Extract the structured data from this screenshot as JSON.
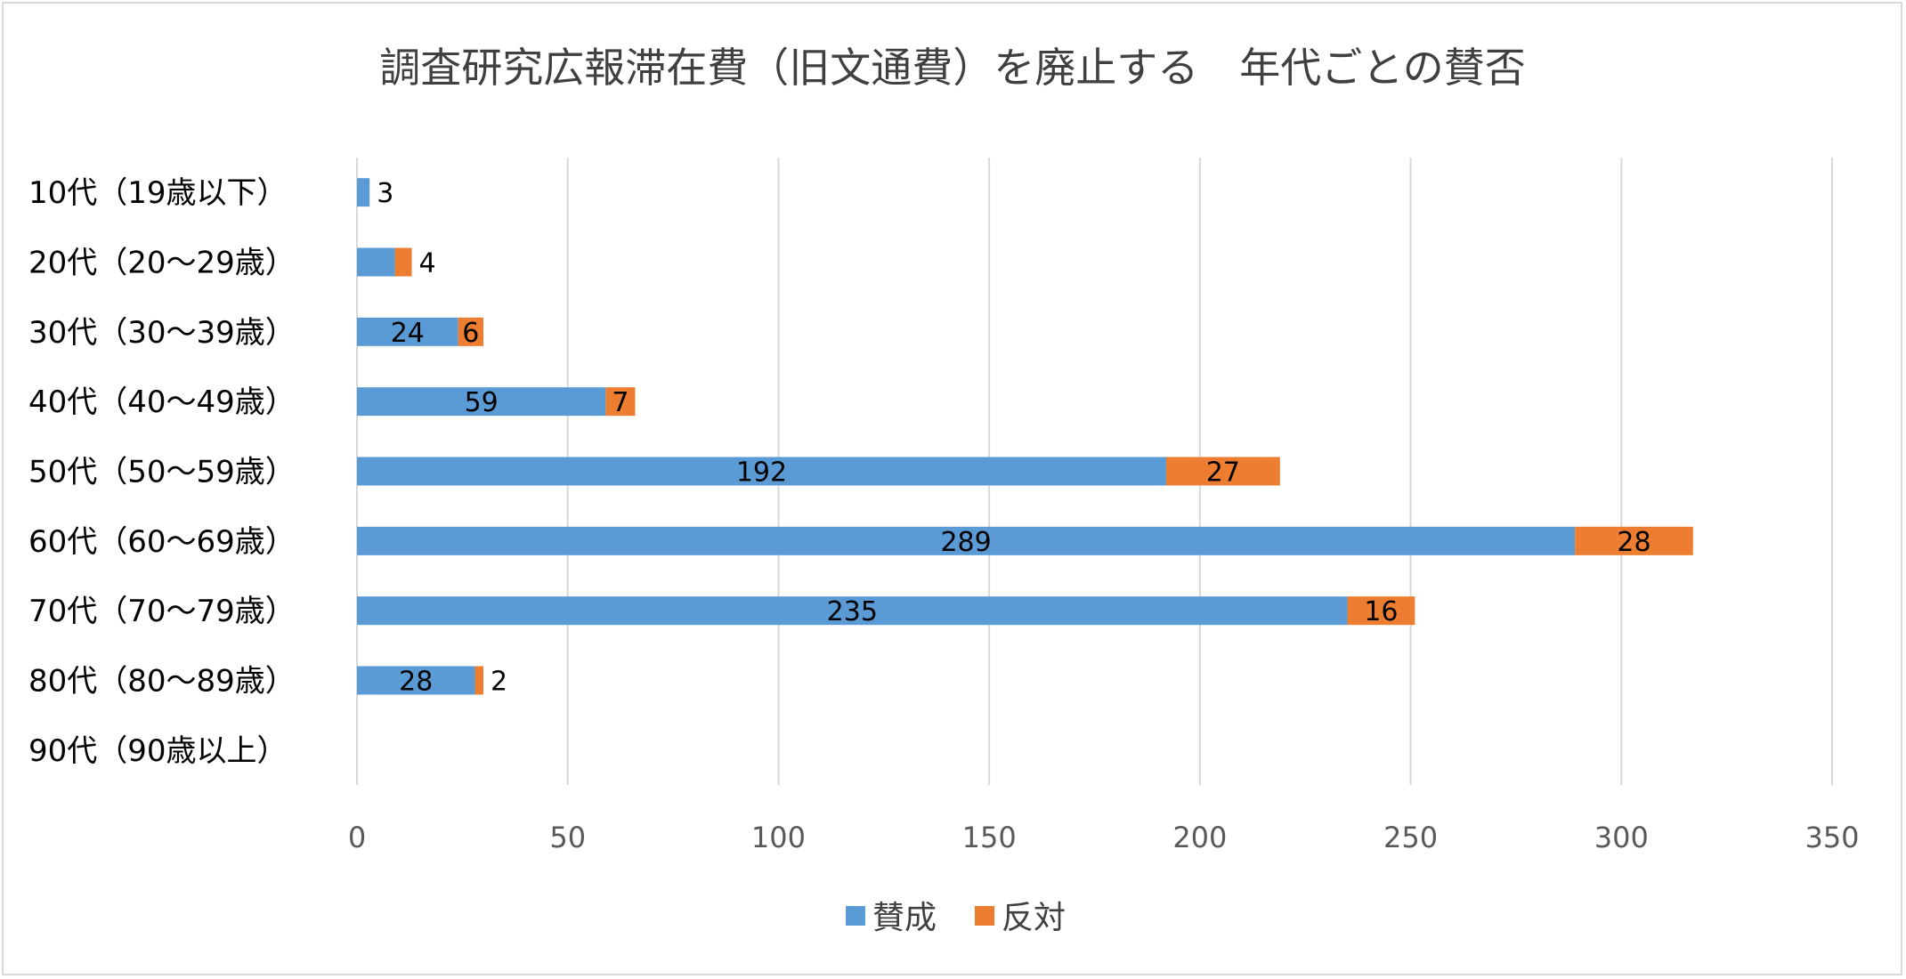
{
  "chart_data": {
    "type": "bar",
    "orientation": "horizontal",
    "stacked": true,
    "title": "調査研究広報滞在費（旧文通費）を廃止する　年代ごとの賛否",
    "categories": [
      "10代（19歳以下）",
      "20代（20～29歳）",
      "30代（30～39歳）",
      "40代（40～49歳）",
      "50代（50～59歳）",
      "60代（60～69歳）",
      "70代（70～79歳）",
      "80代（80～89歳）",
      "90代（90歳以上）"
    ],
    "series": [
      {
        "name": "賛成",
        "color": "#5B9BD5",
        "values": [
          3,
          9,
          24,
          59,
          192,
          289,
          235,
          28,
          0
        ],
        "labels": [
          "3",
          "",
          "24",
          "59",
          "192",
          "289",
          "235",
          "28",
          ""
        ]
      },
      {
        "name": "反対",
        "color": "#ED7D31",
        "values": [
          0,
          4,
          6,
          7,
          27,
          28,
          16,
          2,
          0
        ],
        "labels": [
          "",
          "4",
          "6",
          "7",
          "27",
          "28",
          "16",
          "2",
          ""
        ]
      }
    ],
    "xlim": [
      0,
      350
    ],
    "xticks": [
      "0",
      "50",
      "100",
      "150",
      "200",
      "250",
      "300",
      "350"
    ],
    "grid": true,
    "legend": "bottom"
  }
}
